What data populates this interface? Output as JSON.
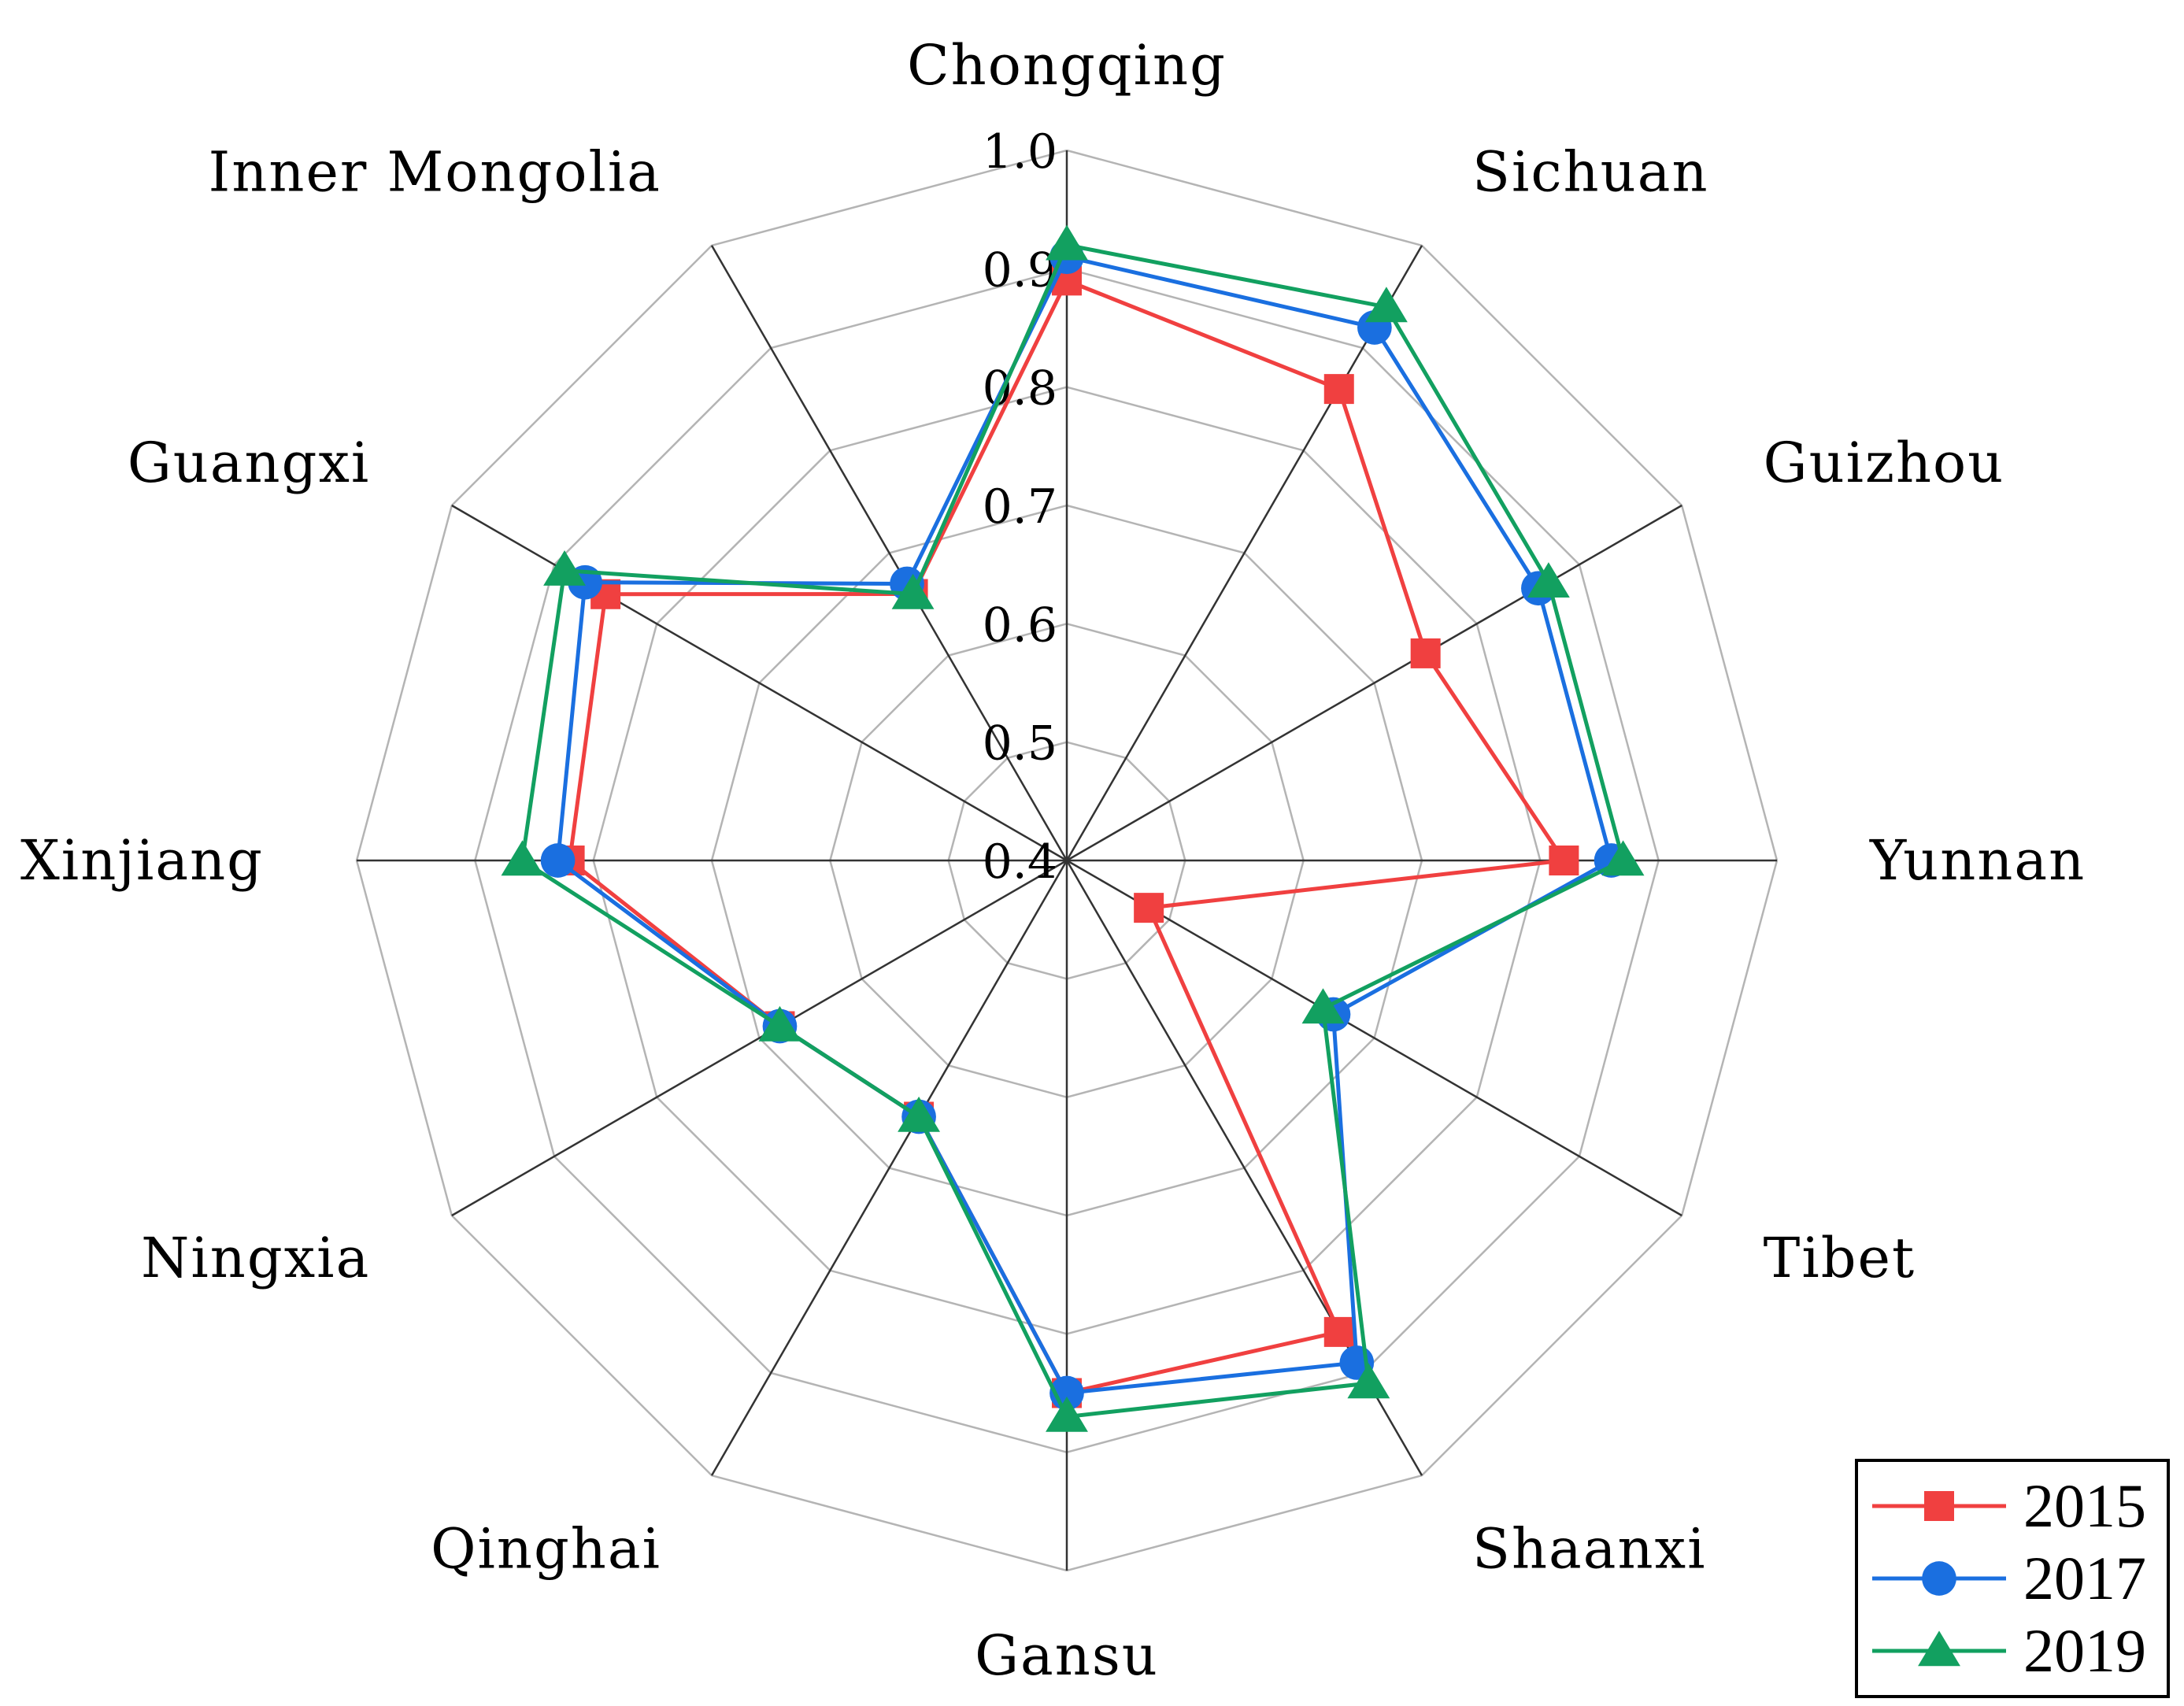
{
  "chart_data": {
    "type": "radar",
    "title": "",
    "categories": [
      "Chongqing",
      "Sichuan",
      "Guizhou",
      "Yunnan",
      "Tibet",
      "Shaanxi",
      "Gansu",
      "Qinghai",
      "Ningxia",
      "Xinjiang",
      "Guangxi",
      "Inner Mongolia"
    ],
    "radial_range": [
      0.4,
      1.0
    ],
    "ticks": [
      0.4,
      0.5,
      0.6,
      0.7,
      0.8,
      0.9,
      1.0
    ],
    "tick_labels": [
      "0.4",
      "0.5",
      "0.6",
      "0.7",
      "0.8",
      "0.9",
      "1.0"
    ],
    "grid": true,
    "legend_position": "bottom-right",
    "series": [
      {
        "name": "2015",
        "color": "#f04040",
        "marker": "square",
        "values": [
          0.89,
          0.86,
          0.75,
          0.82,
          0.48,
          0.86,
          0.85,
          0.65,
          0.68,
          0.82,
          0.85,
          0.66
        ]
      },
      {
        "name": "2017",
        "color": "#1a6fe0",
        "marker": "circle",
        "values": [
          0.91,
          0.92,
          0.86,
          0.86,
          0.66,
          0.89,
          0.85,
          0.65,
          0.68,
          0.83,
          0.87,
          0.67
        ]
      },
      {
        "name": "2019",
        "color": "#12a060",
        "marker": "triangle",
        "values": [
          0.92,
          0.94,
          0.87,
          0.87,
          0.65,
          0.91,
          0.87,
          0.65,
          0.68,
          0.86,
          0.89,
          0.66
        ]
      }
    ]
  }
}
